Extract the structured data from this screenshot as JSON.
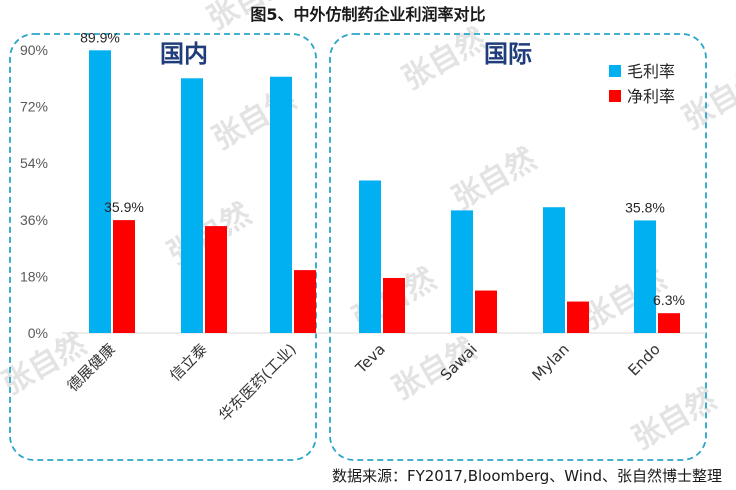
{
  "title": "图5、中外仿制药企业利润率对比",
  "source": "数据来源：FY2017,Bloomberg、Wind、张自然博士整理",
  "watermark": "张自然",
  "groups": [
    "国内",
    "国际"
  ],
  "colors": {
    "gross": "#00b0f0",
    "net": "#ff0000",
    "frame": "#2aa6c9"
  },
  "chart_data": {
    "type": "bar",
    "categories": [
      "德展健康",
      "信立泰",
      "华东医药(工业)",
      "Teva",
      "Sawai",
      "Mylan",
      "Endo"
    ],
    "series": [
      {
        "name": "毛利率",
        "values": [
          89.9,
          81.0,
          81.5,
          48.5,
          39.0,
          40.0,
          35.8
        ]
      },
      {
        "name": "净利率",
        "values": [
          35.9,
          34.0,
          20.0,
          17.5,
          13.5,
          10.0,
          6.3
        ]
      }
    ],
    "ylim": [
      0,
      90
    ],
    "yticks": [
      "0%",
      "18%",
      "36%",
      "54%",
      "72%",
      "90%"
    ],
    "yticks_values": [
      0,
      18,
      36,
      54,
      72,
      90
    ],
    "data_labels": [
      {
        "series": 0,
        "index": 0,
        "text": "89.9%"
      },
      {
        "series": 1,
        "index": 0,
        "text": "35.9%"
      },
      {
        "series": 0,
        "index": 6,
        "text": "35.8%"
      },
      {
        "series": 1,
        "index": 6,
        "text": "6.3%"
      }
    ],
    "legend_position": "top-right",
    "grid": false
  }
}
